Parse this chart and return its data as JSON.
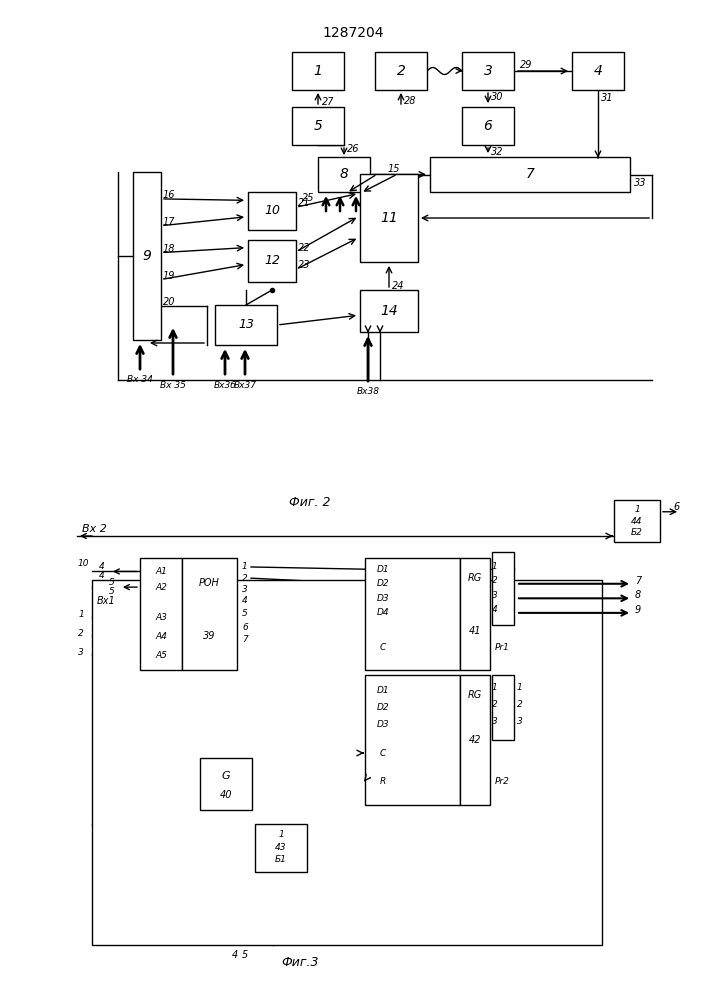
{
  "title": "1287204",
  "fig2_label": "Фиг. 2",
  "fig3_label": "Фиг.3",
  "bg": "#ffffff",
  "lc": "#000000"
}
